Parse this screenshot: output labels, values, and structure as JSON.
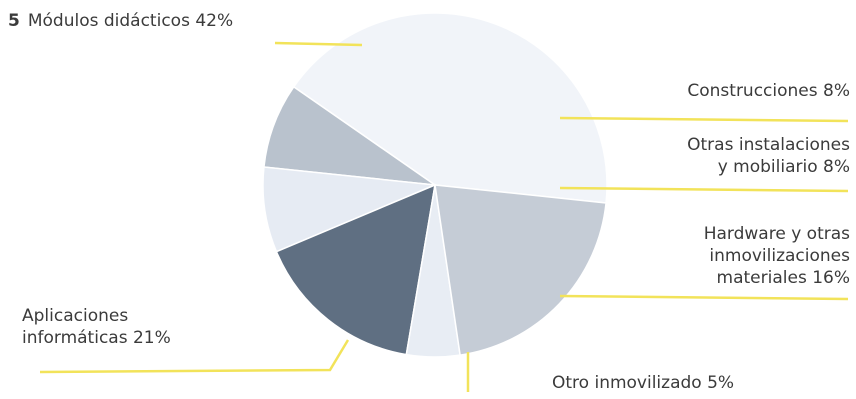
{
  "chart_data": {
    "type": "pie",
    "title": "",
    "slices": [
      {
        "label_lines": [
          "Módulos didácticos 42%"
        ],
        "label": "Módulos didácticos",
        "value": 42,
        "color": "#f1f4f9"
      },
      {
        "label_lines": [
          "Construcciones 8%"
        ],
        "label": "Construcciones",
        "value": 8,
        "color": "#b9c2cd"
      },
      {
        "label_lines": [
          "Otras instalaciones",
          "y mobiliario 8%"
        ],
        "label": "Otras instalaciones y mobiliario",
        "value": 8,
        "color": "#e6ebf3"
      },
      {
        "label_lines": [
          "Hardware y otras",
          "inmovilizaciones",
          "materiales 16%"
        ],
        "label": "Hardware y otras inmovilizaciones materiales",
        "value": 16,
        "color": "#5f6f82"
      },
      {
        "label_lines": [
          "Otro inmovilizado 5%"
        ],
        "label": "Otro inmovilizado",
        "value": 5,
        "color": "#e8edf4"
      },
      {
        "label_lines": [
          "Aplicaciones",
          "informáticas 21%"
        ],
        "label": "Aplicaciones informáticas",
        "value": 21,
        "color": "#c5ccd6"
      }
    ],
    "leader_color": "#f2e35a",
    "bullet_text": "5"
  }
}
